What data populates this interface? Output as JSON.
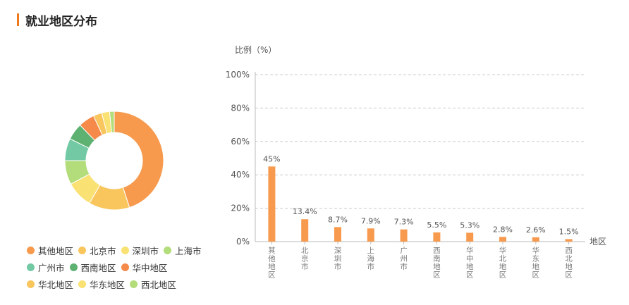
{
  "header": {
    "title": "就业地区分布"
  },
  "colors": {
    "accent": "#f07a1e",
    "bar": "#f79a4d",
    "grid": "#cccccc",
    "axis": "#bbbbbb"
  },
  "chart_data": [
    {
      "type": "pie",
      "variant": "donut",
      "slices": [
        {
          "label": "其他地区",
          "value": 45,
          "color": "#f79a4d"
        },
        {
          "label": "北京市",
          "value": 13.4,
          "color": "#f8c65d"
        },
        {
          "label": "深圳市",
          "value": 8.7,
          "color": "#f9e173"
        },
        {
          "label": "上海市",
          "value": 7.9,
          "color": "#b3dc7a"
        },
        {
          "label": "广州市",
          "value": 7.3,
          "color": "#73c9a4"
        },
        {
          "label": "西南地区",
          "value": 5.5,
          "color": "#5db171"
        },
        {
          "label": "华中地区",
          "value": 5.3,
          "color": "#f58a4a"
        },
        {
          "label": "华北地区",
          "value": 2.8,
          "color": "#f8c65d"
        },
        {
          "label": "华东地区",
          "value": 2.6,
          "color": "#f9e173"
        },
        {
          "label": "西北地区",
          "value": 1.5,
          "color": "#b3dc7a"
        }
      ],
      "legend_rows": [
        [
          "其他地区",
          "北京市",
          "深圳市",
          "上海市"
        ],
        [
          "广州市",
          "西南地区",
          "华中地区"
        ],
        [
          "华北地区",
          "华东地区",
          "西北地区"
        ]
      ],
      "legend": "bottom-left"
    },
    {
      "type": "bar",
      "categories": [
        "其他地区",
        "北京市",
        "深圳市",
        "上海市",
        "广州市",
        "西南地区",
        "华中地区",
        "华北地区",
        "华东地区",
        "西北地区"
      ],
      "values": [
        45,
        13.4,
        8.7,
        7.9,
        7.3,
        5.5,
        5.3,
        2.8,
        2.6,
        1.5
      ],
      "value_labels": [
        "45%",
        "13.4%",
        "8.7%",
        "7.9%",
        "7.3%",
        "5.5%",
        "5.3%",
        "2.8%",
        "2.6%",
        "1.5%"
      ],
      "ylabel": "比例（%）",
      "xlabel": "地区",
      "ylim": [
        0,
        100
      ],
      "yticks": [
        0,
        20,
        40,
        60,
        80,
        100
      ],
      "ytick_labels": [
        "0%",
        "20%",
        "40%",
        "60%",
        "80%",
        "100%"
      ],
      "grid": true
    }
  ]
}
